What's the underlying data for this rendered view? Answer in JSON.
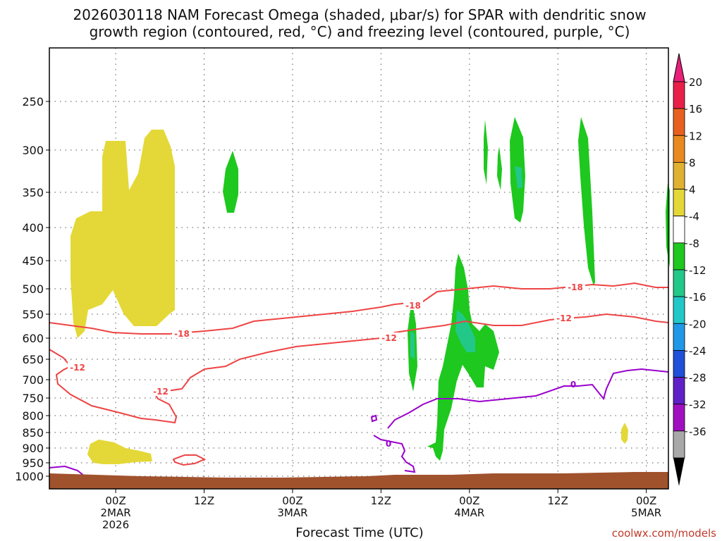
{
  "chart_data": {
    "type": "heatmap",
    "title_line1": "2026030118 NAM Forecast Omega (shaded, μbar/s) for SPAR with dendritic snow",
    "title_line2": "growth region (contoured, red, °C) and freezing level (contoured, purple, °C)",
    "xlabel": "Forecast Time (UTC)",
    "credit": "coolwx.com/models",
    "y_axis": {
      "scale": "pressure, inverted",
      "range": [
        1000,
        200
      ],
      "ticks": [
        250,
        300,
        350,
        400,
        450,
        500,
        550,
        600,
        650,
        700,
        750,
        800,
        850,
        900,
        950,
        1000
      ],
      "tick_labels": [
        "250",
        "300",
        "350",
        "400",
        "450",
        "500",
        "550",
        "600",
        "650",
        "700",
        "750",
        "800",
        "850",
        "900",
        "950",
        "1000"
      ]
    },
    "x_axis": {
      "range_hours": [
        -9,
        75
      ],
      "ticks": [
        {
          "h": 0,
          "l1": "00Z",
          "l2": "2MAR",
          "l3": "2026"
        },
        {
          "h": 12,
          "l1": "12Z",
          "l2": "",
          "l3": ""
        },
        {
          "h": 24,
          "l1": "00Z",
          "l2": "3MAR",
          "l3": ""
        },
        {
          "h": 36,
          "l1": "12Z",
          "l2": "",
          "l3": ""
        },
        {
          "h": 48,
          "l1": "00Z",
          "l2": "4MAR",
          "l3": ""
        },
        {
          "h": 60,
          "l1": "12Z",
          "l2": "",
          "l3": ""
        },
        {
          "h": 72,
          "l1": "00Z",
          "l2": "5MAR",
          "l3": ""
        }
      ]
    },
    "grid": true,
    "colorbar": {
      "placement": "right",
      "labels": [
        "20",
        "16",
        "12",
        "8",
        "4",
        "-4",
        "-8",
        "-12",
        "-16",
        "-20",
        "-24",
        "-28",
        "-32",
        "-36"
      ],
      "colors": [
        "#e8204a",
        "#e86020",
        "#e88a20",
        "#e0b030",
        "#e4d838",
        "#ffffff",
        "#1ec81e",
        "#22c888",
        "#22c8c8",
        "#2098e8",
        "#2050d8",
        "#6020c8",
        "#a010c0",
        "#a8a8a8"
      ]
    },
    "contour_labels": {
      "red": [
        "-18",
        "-12",
        "-12",
        "-12",
        "-18",
        "-12",
        "-18",
        "-12"
      ],
      "purple": [
        "0",
        "0"
      ]
    },
    "colors": {
      "dgz": "#ee4444",
      "freezing": "#9900cc",
      "terrain": "#a0522d",
      "positive_omega": "#e4d838",
      "negative_omega": "#1ec81e",
      "strong_negative": "#22c888"
    }
  }
}
